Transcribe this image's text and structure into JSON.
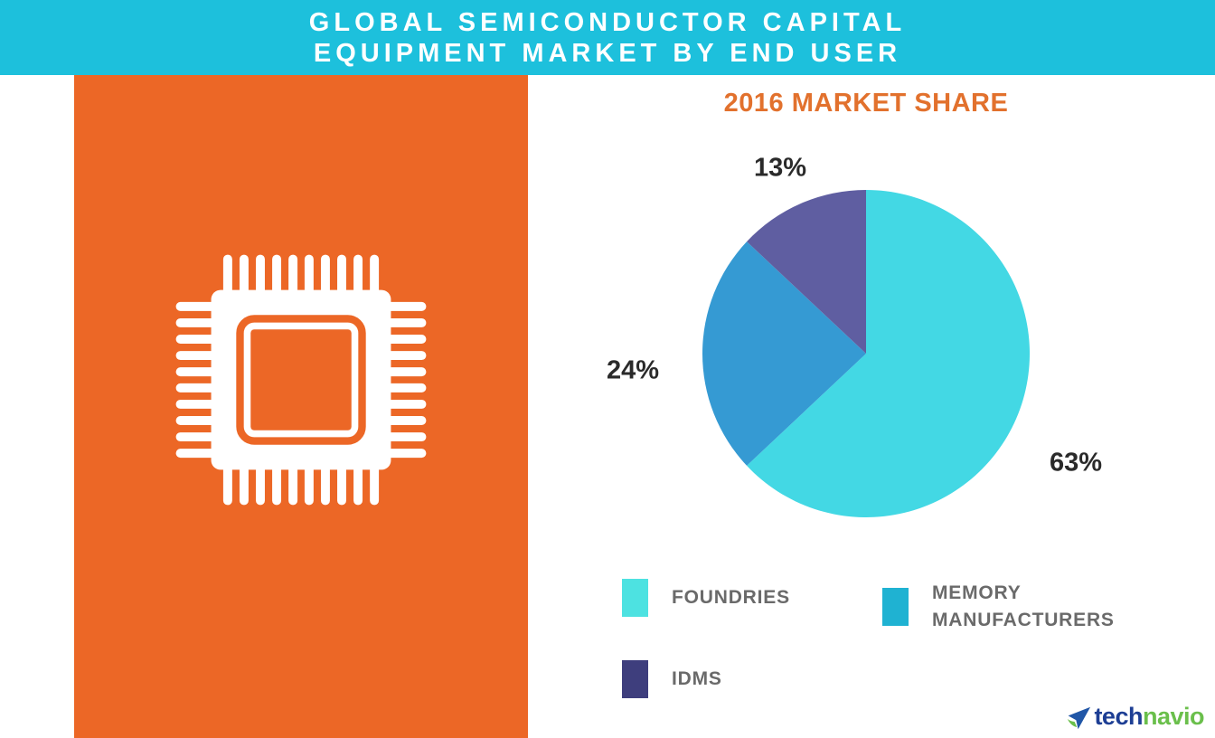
{
  "header": {
    "title_line1": "GLOBAL SEMICONDUCTOR CAPITAL",
    "title_line2": "EQUIPMENT MARKET BY END USER",
    "background_color": "#1dc0dc",
    "text_color": "#ffffff"
  },
  "left_panel": {
    "background_color": "#ec6726",
    "icon": "microchip-icon"
  },
  "chart_data": {
    "type": "pie",
    "title": "2016 MARKET SHARE",
    "title_color": "#e2712d",
    "start_angle": "12-oclock",
    "direction": "clockwise",
    "slices": [
      {
        "label": "FOUNDRIES",
        "value_pct": 63,
        "display": "63%",
        "color": "#43d8e4"
      },
      {
        "label": "MEMORY MANUFACTURERS",
        "value_pct": 24,
        "display": "24%",
        "color": "#359ad3"
      },
      {
        "label": "IDMS",
        "value_pct": 13,
        "display": "13%",
        "color": "#5f5ea1"
      }
    ],
    "value_label_color": "#2a2a2a",
    "legend_position": "below-chart"
  },
  "legend": {
    "text_color": "#6a6a6a",
    "items": [
      {
        "lines": [
          "FOUNDRIES"
        ],
        "swatch_color": "#4de2e1"
      },
      {
        "lines": [
          "MEMORY",
          "MANUFACTURERS"
        ],
        "swatch_color": "#1fb2d2"
      },
      {
        "lines": [
          "IDMS"
        ],
        "swatch_color": "#3e3e7d"
      }
    ]
  },
  "logo": {
    "brand_part1": "tech",
    "brand_part2": "navio",
    "part1_color": "#1d3e94",
    "part2_color": "#6abf4b",
    "icon": "technavio-arrow-icon"
  }
}
